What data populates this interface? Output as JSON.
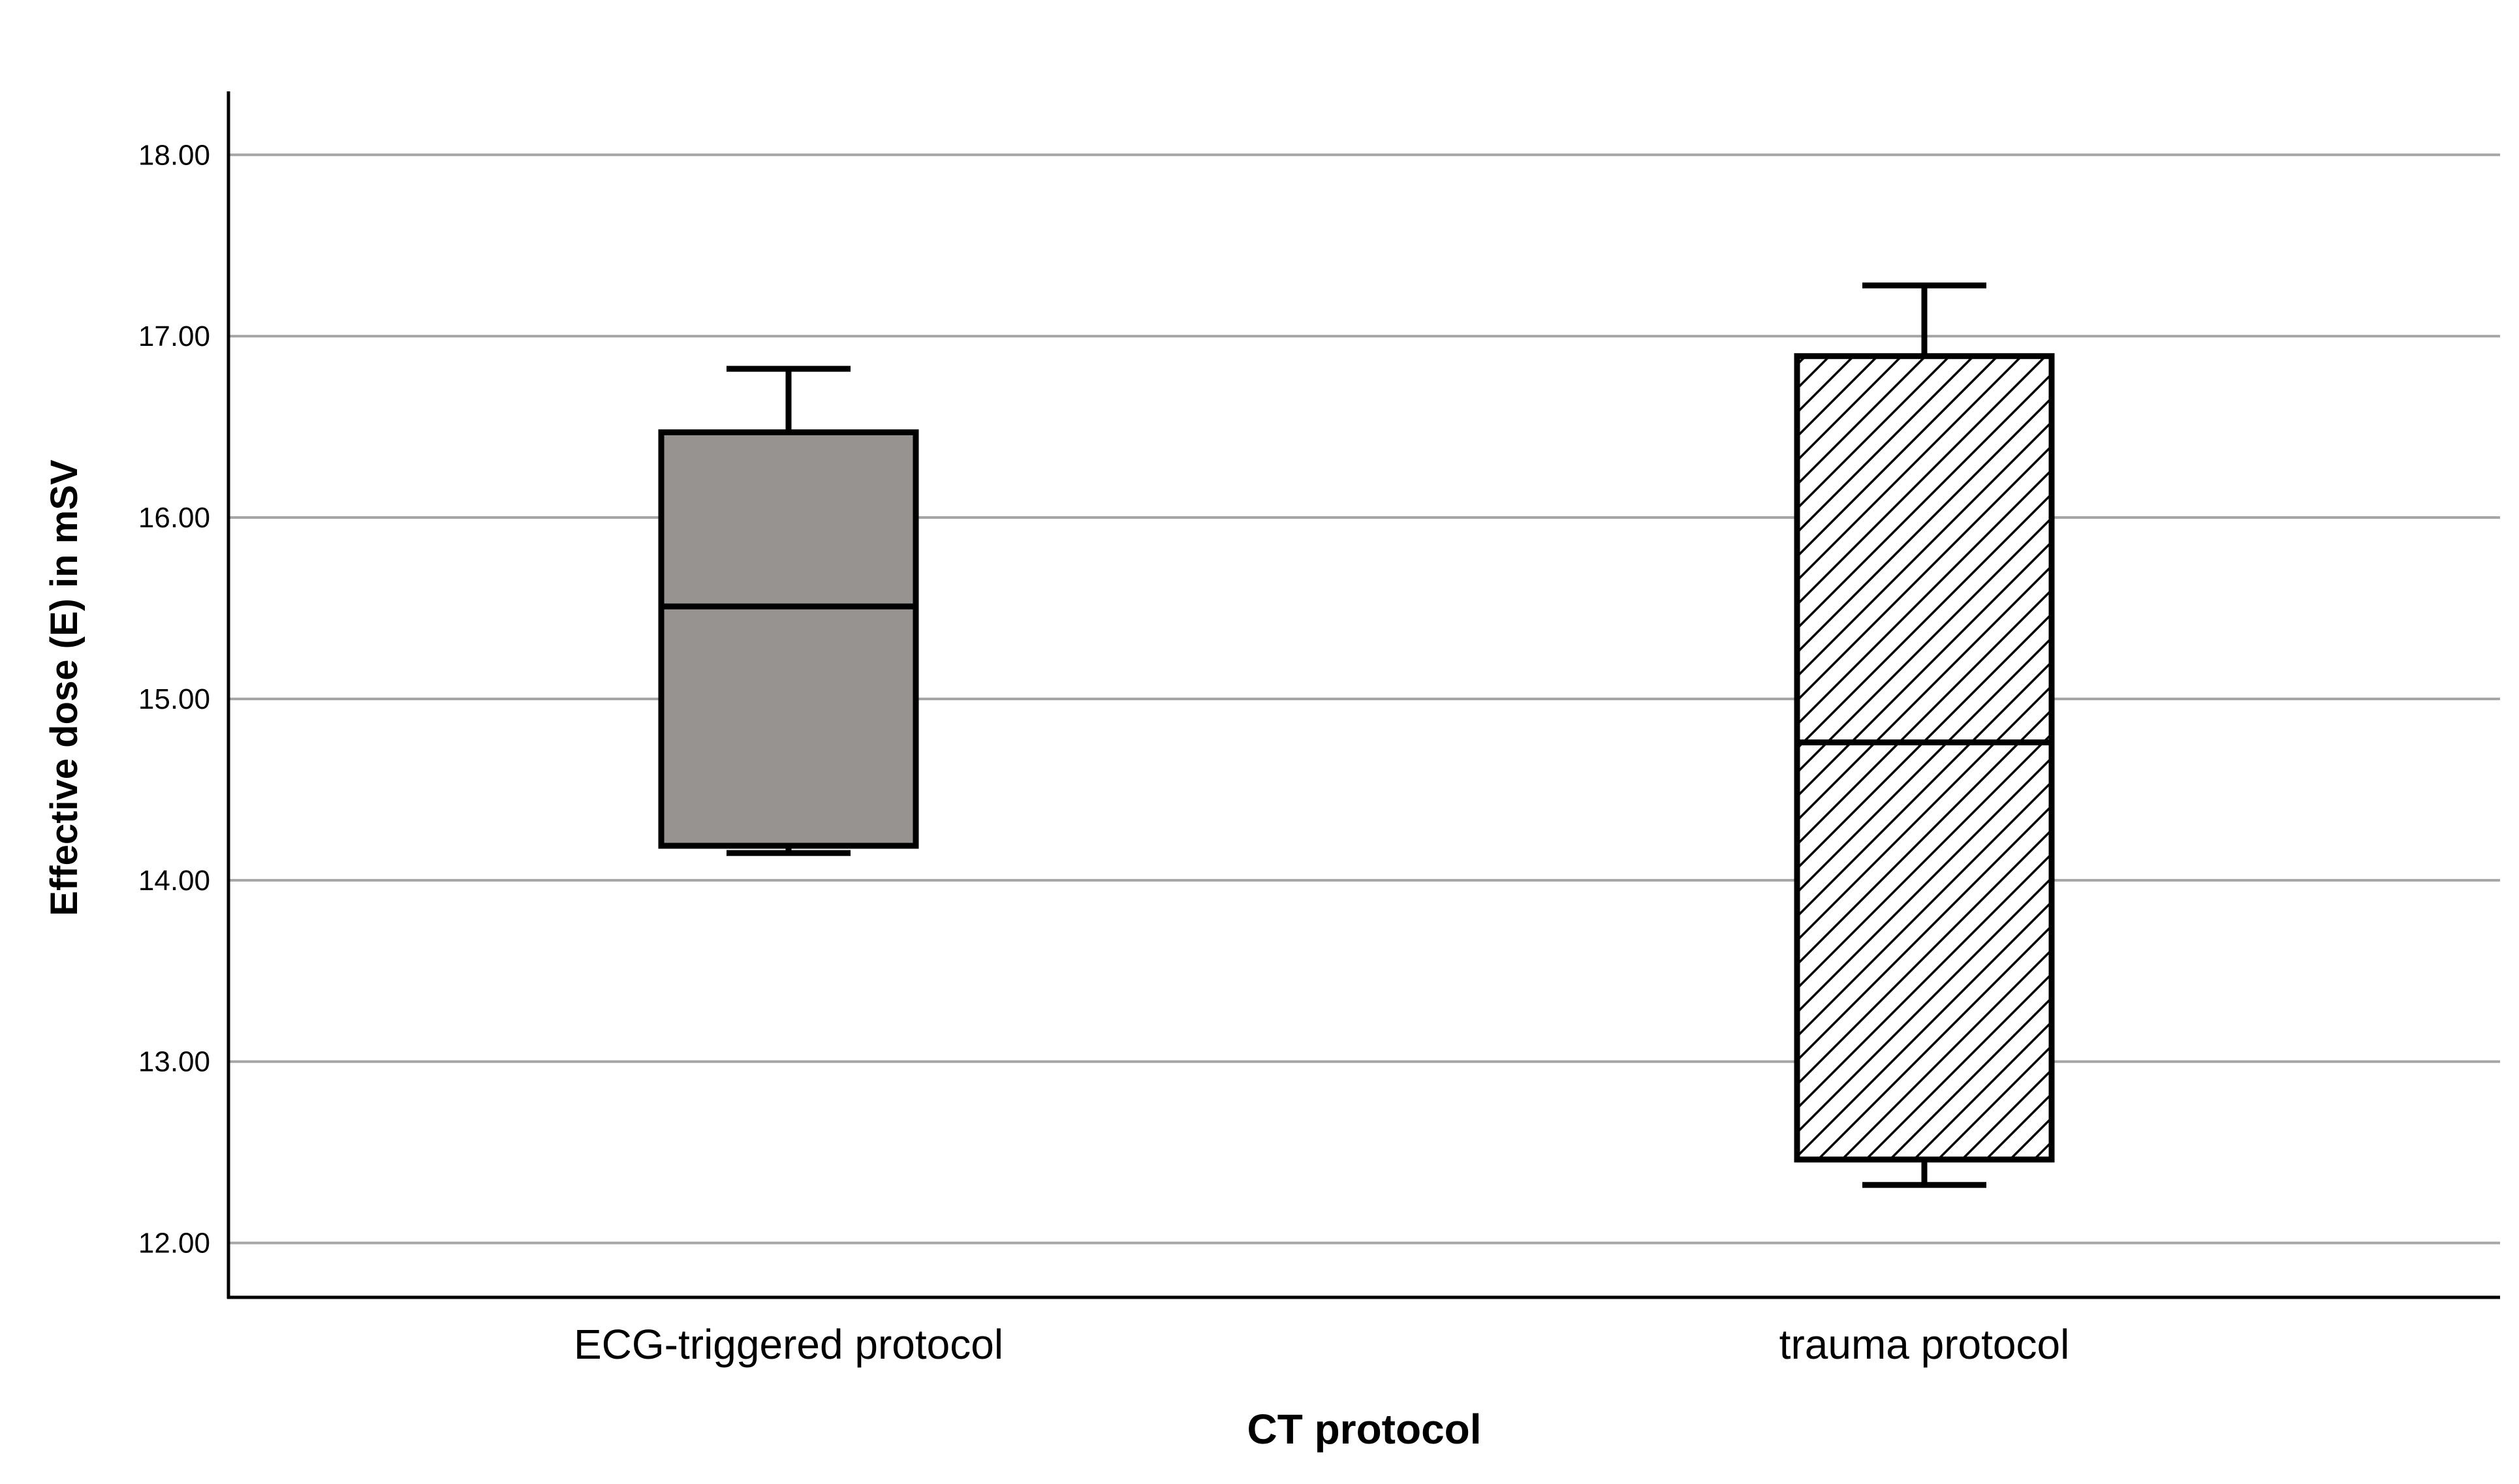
{
  "chart_data": {
    "type": "boxplot",
    "xlabel": "CT protocol",
    "ylabel": "Effective dose (E) in mSV",
    "ylim": [
      11.7,
      18.35
    ],
    "yticks": [
      "12.00",
      "13.00",
      "14.00",
      "15.00",
      "16.00",
      "17.00",
      "18.00"
    ],
    "ytick_values": [
      12,
      13,
      14,
      15,
      16,
      17,
      18
    ],
    "grid": true,
    "legend": "none",
    "categories": [
      "ECG-triggered protocol",
      "trauma protocol"
    ],
    "boxes": [
      {
        "category": "ECG-triggered protocol",
        "min": 14.15,
        "q1": 14.19,
        "median": 15.51,
        "q3": 16.47,
        "max": 16.82,
        "fill": "#979391",
        "pattern": "solid"
      },
      {
        "category": "trauma protocol",
        "min": 12.32,
        "q1": 12.46,
        "median": 14.76,
        "q3": 16.89,
        "max": 17.28,
        "fill": "#ffffff",
        "pattern": "diagonal-hatch"
      }
    ],
    "colors": {
      "grid": "#a6a6a6",
      "axis": "#000000",
      "box_edge": "#000000"
    }
  }
}
